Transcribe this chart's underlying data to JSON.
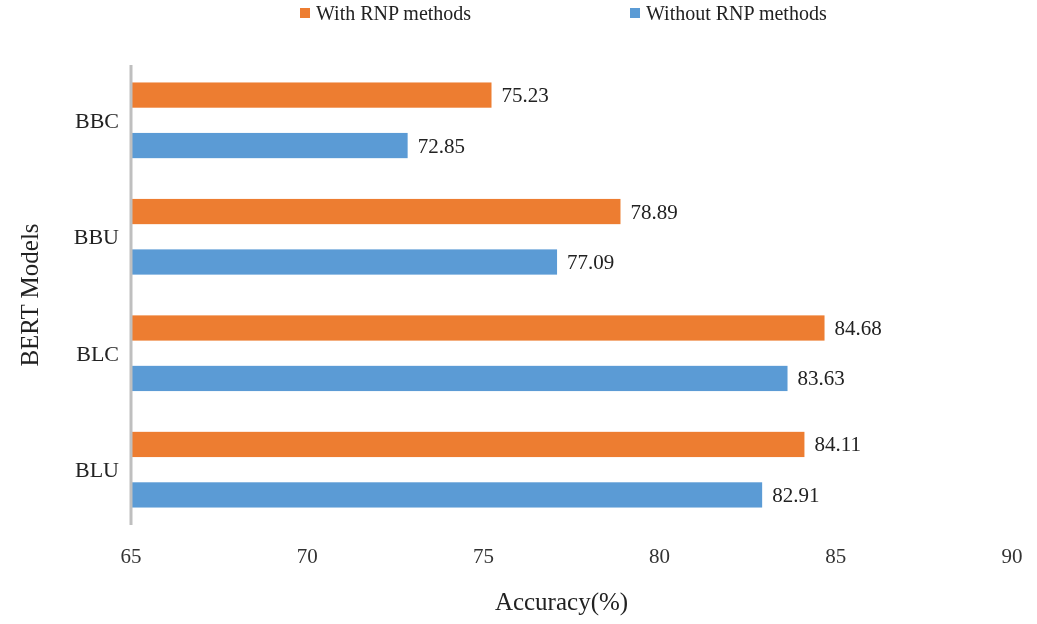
{
  "chart_data": {
    "type": "bar",
    "orientation": "horizontal",
    "xlabel": "Accuracy(%)",
    "ylabel": "BERT Models",
    "categories": [
      "BBC",
      "BBU",
      "BLC",
      "BLU"
    ],
    "series": [
      {
        "name": "With RNP methods",
        "color": "#ed7d31",
        "values": [
          75.23,
          78.89,
          84.68,
          84.11
        ]
      },
      {
        "name": "Without RNP methods",
        "color": "#5b9bd5",
        "values": [
          72.85,
          77.09,
          83.63,
          82.91
        ]
      }
    ],
    "xlim": [
      65,
      90
    ],
    "xticks": [
      65,
      70,
      75,
      80,
      85,
      90
    ],
    "data_labels": true,
    "legend": "top",
    "grid": false
  }
}
